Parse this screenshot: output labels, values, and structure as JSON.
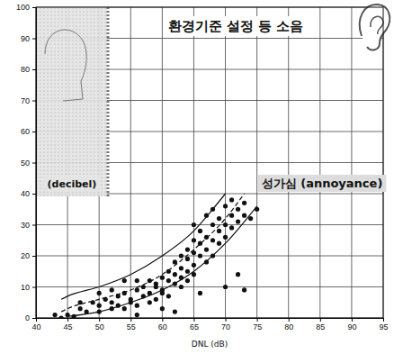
{
  "chart_data": {
    "type": "scatter",
    "x_label": "DNL (dB)",
    "annotations": [
      "환경기준 설정 등 소음",
      "(decibel)",
      "성가심 (annoyance)"
    ],
    "xlim": [
      40,
      95
    ],
    "xticks": [
      40,
      45,
      50,
      55,
      60,
      65,
      70,
      75,
      80,
      85,
      90,
      95
    ],
    "ylim": [
      0,
      100
    ],
    "yticks": [
      0,
      10,
      20,
      30,
      40,
      50,
      60,
      70,
      80,
      90,
      100
    ],
    "grid": true,
    "series": [
      {
        "type": "scatter",
        "marker": "circle",
        "color": "#111111",
        "x": [
          43,
          44,
          45,
          46,
          47,
          48,
          49,
          50,
          50,
          51,
          52,
          52,
          53,
          53,
          54,
          54,
          55,
          55,
          56,
          56,
          56,
          57,
          57,
          58,
          58,
          58,
          59,
          59,
          59,
          60,
          60,
          60,
          61,
          61,
          61,
          62,
          62,
          62,
          62,
          63,
          63,
          63,
          63,
          64,
          64,
          64,
          64,
          65,
          65,
          65,
          65,
          65,
          66,
          66,
          66,
          66,
          67,
          67,
          67,
          67,
          68,
          68,
          68,
          68,
          69,
          69,
          69,
          70,
          70,
          70,
          71,
          71,
          71,
          72,
          72,
          73,
          73,
          73,
          74,
          75,
          70,
          72,
          60,
          56,
          54,
          52,
          50,
          47
        ],
        "values": [
          1,
          0,
          1,
          0.5,
          3,
          2,
          5,
          2,
          4,
          6,
          5,
          3,
          4,
          7,
          3,
          8,
          5,
          6,
          9,
          4,
          1,
          7,
          10,
          8,
          12,
          5,
          6,
          10,
          11,
          13,
          9,
          8,
          12,
          15,
          7,
          11,
          14,
          18,
          2,
          10,
          16,
          20,
          13,
          15,
          19,
          22,
          12,
          17,
          25,
          21,
          14,
          30,
          20,
          24,
          28,
          8,
          22,
          26,
          18,
          33,
          25,
          30,
          35,
          20,
          28,
          32,
          24,
          30,
          36,
          26,
          33,
          29,
          38,
          35,
          31,
          37,
          33,
          9,
          32,
          35,
          10,
          14,
          3,
          12,
          12,
          9,
          8,
          5
        ]
      },
      {
        "type": "line",
        "line_style": "solid",
        "color": "#111111",
        "x": [
          44,
          45,
          50,
          55,
          60,
          65,
          68,
          70
        ],
        "values": [
          6,
          7,
          10,
          14,
          20,
          28,
          35,
          40
        ]
      },
      {
        "type": "line",
        "line_style": "dashed",
        "color": "#111111",
        "x": [
          44,
          45,
          50,
          55,
          60,
          65,
          70,
          73
        ],
        "values": [
          2,
          3,
          6,
          9,
          14,
          22,
          32,
          40
        ]
      },
      {
        "type": "line",
        "line_style": "solid",
        "color": "#111111",
        "x": [
          45,
          50,
          55,
          60,
          65,
          70,
          75
        ],
        "values": [
          0.5,
          2,
          5,
          9,
          15,
          24,
          36
        ]
      }
    ]
  }
}
